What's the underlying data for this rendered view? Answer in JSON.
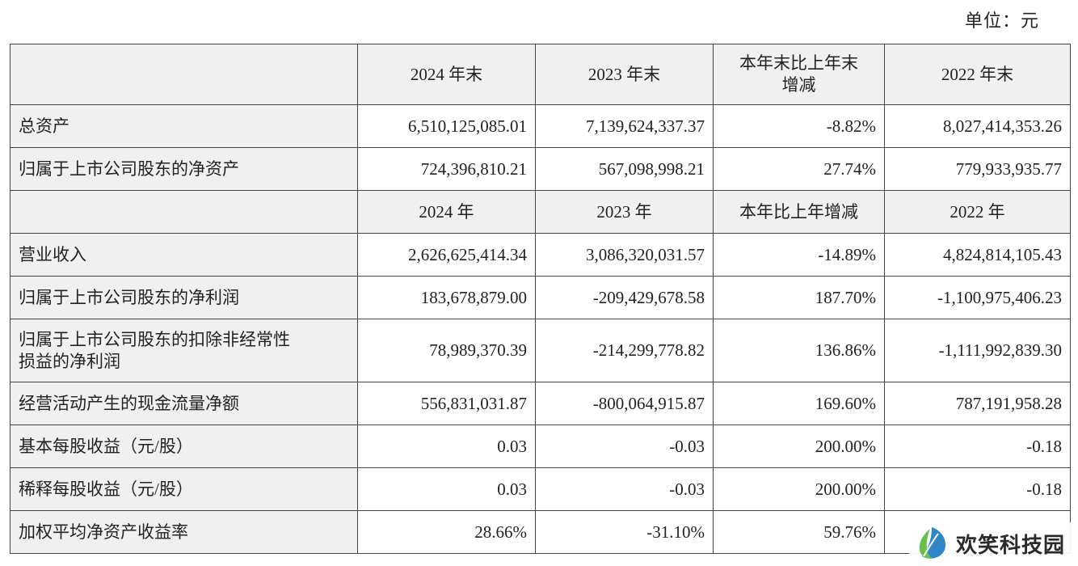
{
  "unit_label": "单位：元",
  "header_1": [
    "",
    "2024 年末",
    "2023 年末",
    "本年末比上年末\n增减",
    "2022 年末"
  ],
  "header_1_line_a": "本年末比上年末",
  "header_1_line_b": "增减",
  "rows_1": [
    {
      "label": "总资产",
      "values": [
        "6,510,125,085.01",
        "7,139,624,337.37",
        "-8.82%",
        "8,027,414,353.26"
      ]
    },
    {
      "label": "归属于上市公司股东的净资产",
      "values": [
        "724,396,810.21",
        "567,098,998.21",
        "27.74%",
        "779,933,935.77"
      ]
    }
  ],
  "header_2": [
    "",
    "2024 年",
    "2023 年",
    "本年比上年增减",
    "2022 年"
  ],
  "rows_2": [
    {
      "label": "营业收入",
      "values": [
        "2,626,625,414.34",
        "3,086,320,031.57",
        "-14.89%",
        "4,824,814,105.43"
      ]
    },
    {
      "label": "归属于上市公司股东的净利润",
      "values": [
        "183,678,879.00",
        "-209,429,678.58",
        "187.70%",
        "-1,100,975,406.23"
      ]
    },
    {
      "label_line_a": "归属于上市公司股东的扣除非经常性",
      "label_line_b": "损益的净利润",
      "values": [
        "78,989,370.39",
        "-214,299,778.82",
        "136.86%",
        "-1,111,992,839.30"
      ]
    },
    {
      "label": "经营活动产生的现金流量净额",
      "values": [
        "556,831,031.87",
        "-800,064,915.87",
        "169.60%",
        "787,191,958.28"
      ]
    },
    {
      "label": "基本每股收益（元/股）",
      "values": [
        "0.03",
        "-0.03",
        "200.00%",
        "-0.18"
      ]
    },
    {
      "label": "稀释每股收益（元/股）",
      "values": [
        "0.03",
        "-0.03",
        "200.00%",
        "-0.18"
      ]
    },
    {
      "label": "加权平均净资产收益率",
      "values": [
        "28.66%",
        "-31.10%",
        "59.76%",
        ""
      ]
    }
  ],
  "watermark": {
    "text": "欢笑科技园",
    "icon": "leaf-logo-icon",
    "colors": {
      "blue": "#2f86c8",
      "green": "#6cc04a"
    }
  }
}
